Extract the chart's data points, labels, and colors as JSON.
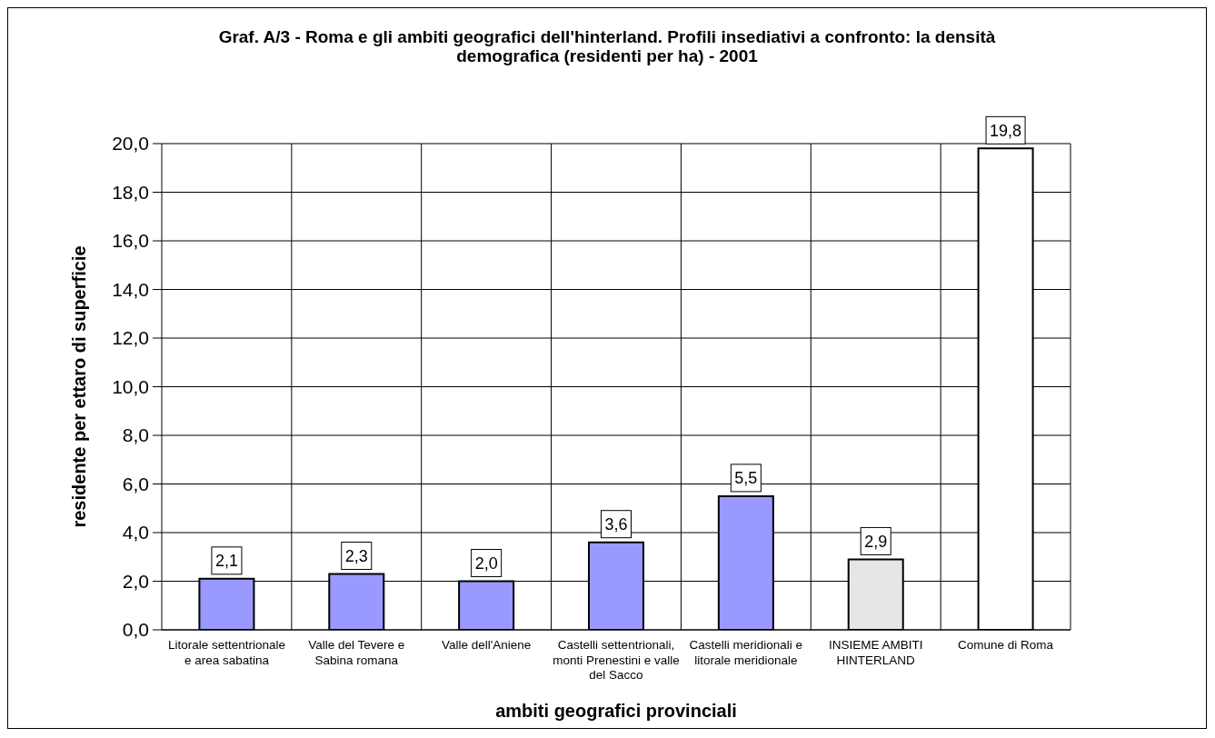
{
  "chart_data": {
    "type": "bar",
    "title": "Graf. A/3 - Roma e gli ambiti geografici dell'hinterland. Profili insediativi a confronto: la densità demografica (residenti per ha) - 2001",
    "xlabel": "ambiti geografici provinciali",
    "ylabel": "residente per ettaro di superficie",
    "categories": [
      "Litorale settentrionale e area sabatina",
      "Valle del Tevere e Sabina romana",
      "Valle dell'Aniene",
      "Castelli settentrionali, monti Prenestini e valle del Sacco",
      "Castelli meridionali e litorale meridionale",
      "INSIEME AMBITI HINTERLAND",
      "Comune di Roma"
    ],
    "values": [
      2.1,
      2.3,
      2.0,
      3.6,
      5.5,
      2.9,
      19.8
    ],
    "value_labels": [
      "2,1",
      "2,3",
      "2,0",
      "3,6",
      "5,5",
      "2,9",
      "19,8"
    ],
    "colors": [
      "#9999ff",
      "#9999ff",
      "#9999ff",
      "#9999ff",
      "#9999ff",
      "#e6e6e6",
      "#ffffff"
    ],
    "ylim": [
      0,
      20
    ],
    "yticks": [
      {
        "value": 0,
        "label": "0,0"
      },
      {
        "value": 2,
        "label": "2,0"
      },
      {
        "value": 4,
        "label": "4,0"
      },
      {
        "value": 6,
        "label": "6,0"
      },
      {
        "value": 8,
        "label": "8,0"
      },
      {
        "value": 10,
        "label": "10,0"
      },
      {
        "value": 12,
        "label": "12,0"
      },
      {
        "value": 14,
        "label": "14,0"
      },
      {
        "value": 16,
        "label": "16,0"
      },
      {
        "value": 18,
        "label": "18,0"
      },
      {
        "value": 20,
        "label": "20,0"
      }
    ],
    "grid": true
  }
}
